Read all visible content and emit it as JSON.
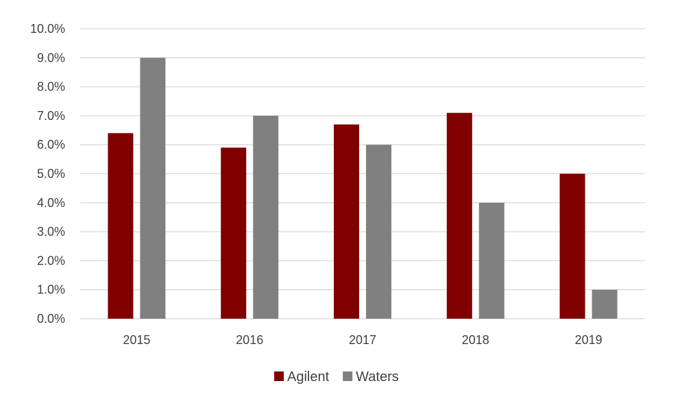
{
  "chart_data": {
    "type": "bar",
    "title": "",
    "xlabel": "",
    "ylabel": "",
    "categories": [
      "2015",
      "2016",
      "2017",
      "2018",
      "2019"
    ],
    "series": [
      {
        "name": "Agilent",
        "values": [
          6.4,
          5.9,
          6.7,
          7.1,
          5.0
        ],
        "color": "#800000"
      },
      {
        "name": "Waters",
        "values": [
          9.0,
          7.0,
          6.0,
          4.0,
          1.0
        ],
        "color": "#808080"
      }
    ],
    "ylim": [
      0,
      10
    ],
    "yticks": [
      "0.0%",
      "1.0%",
      "2.0%",
      "3.0%",
      "4.0%",
      "5.0%",
      "6.0%",
      "7.0%",
      "8.0%",
      "9.0%",
      "10.0%"
    ],
    "grid": true,
    "gridline_color": "#d9d9d9",
    "legend_position": "bottom"
  }
}
